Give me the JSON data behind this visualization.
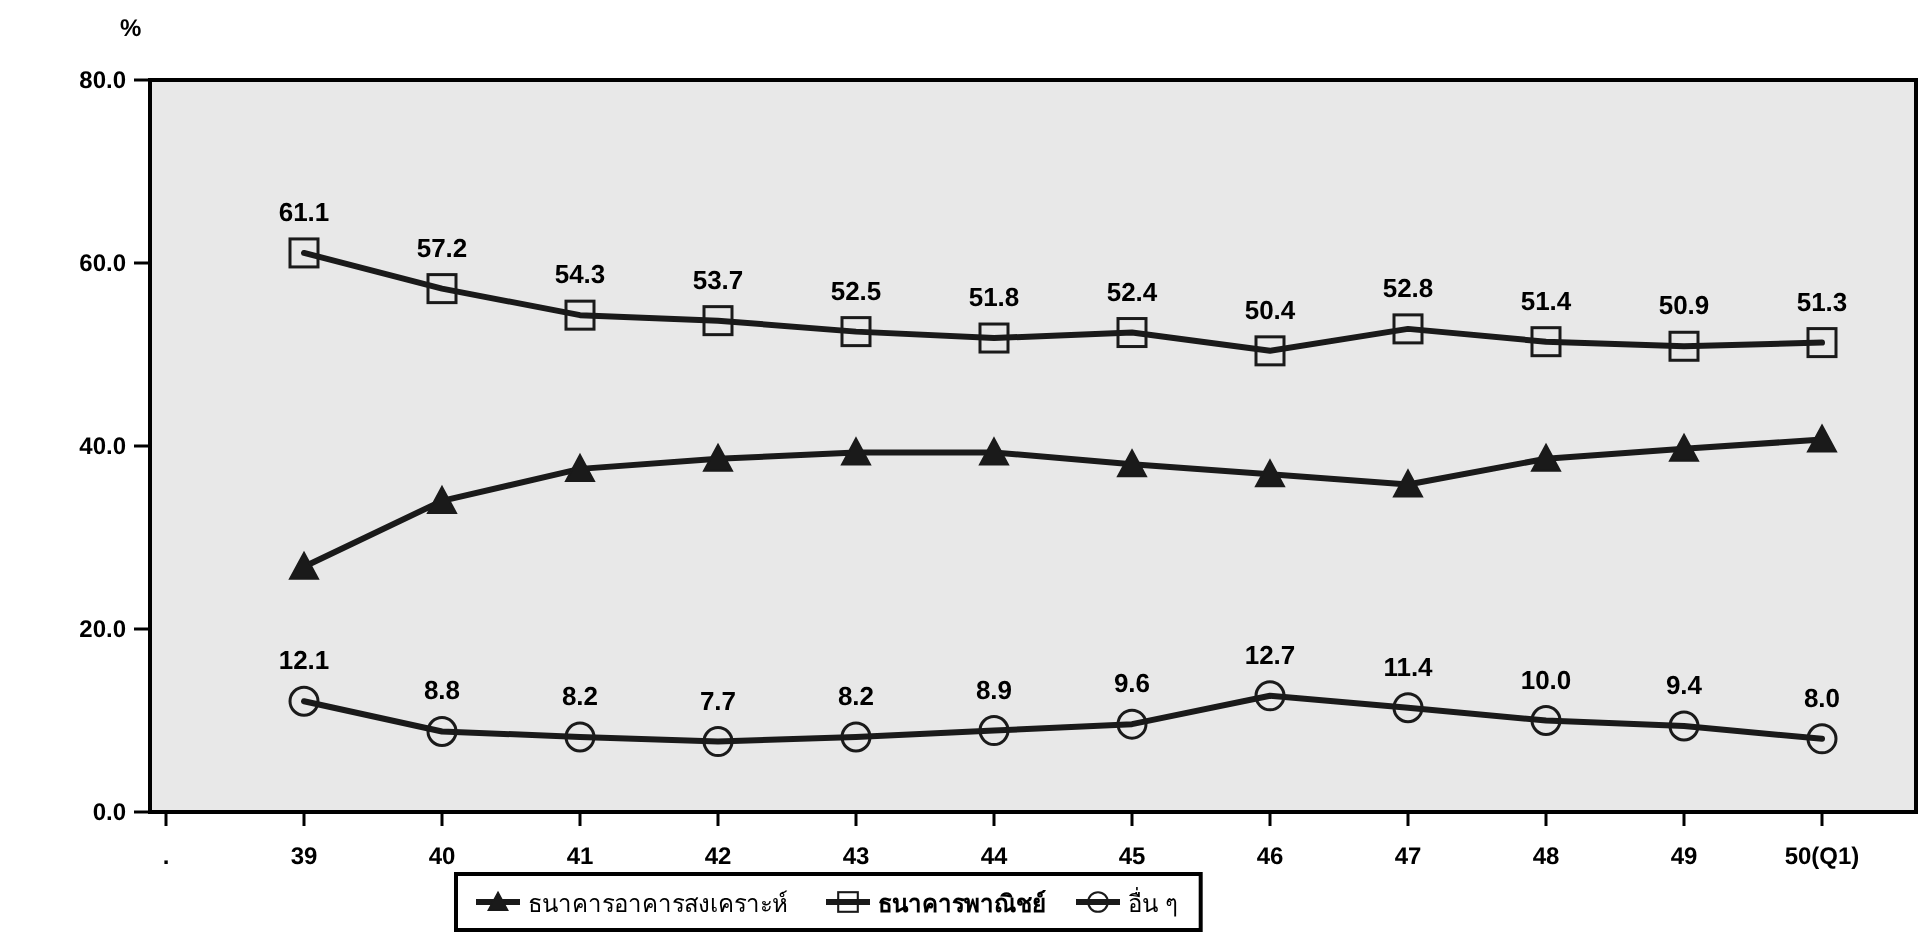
{
  "chart_data": {
    "type": "line",
    "ylabel": "%",
    "categories": [
      ".",
      "39",
      "40",
      "41",
      "42",
      "43",
      "44",
      "45",
      "46",
      "47",
      "48",
      "49",
      "50(Q1)"
    ],
    "ylim": [
      0,
      80
    ],
    "yticks": [
      {
        "value": 0,
        "label": "0.0"
      },
      {
        "value": 20,
        "label": "20.0"
      },
      {
        "value": 40,
        "label": "40.0"
      },
      {
        "value": 60,
        "label": "60.0"
      },
      {
        "value": 80,
        "label": "80.0"
      }
    ],
    "grid": false,
    "legend": "bottom",
    "line_style": "solid",
    "series": [
      {
        "name": "ธนาคารอาคารสงเคราะห์",
        "color": "#1a1a1a",
        "marker": "triangle",
        "values": [
          null,
          26.8,
          34.0,
          37.5,
          38.6,
          39.3,
          39.3,
          38.0,
          36.9,
          35.8,
          38.6,
          39.7,
          40.7
        ]
      },
      {
        "name": "ธนาคารพาณิชย์",
        "color": "#1a1a1a",
        "marker": "square",
        "values": [
          null,
          61.1,
          57.2,
          54.3,
          53.7,
          52.5,
          51.8,
          52.4,
          50.4,
          52.8,
          51.4,
          50.9,
          51.3
        ],
        "value_labels": [
          null,
          "61.1",
          "57.2",
          "54.3",
          "53.7",
          "52.5",
          "51.8",
          "52.4",
          "50.4",
          "52.8",
          "51.4",
          "50.9",
          "51.3"
        ]
      },
      {
        "name": "อื่น ๆ",
        "color": "#1a1a1a",
        "marker": "circle",
        "values": [
          null,
          12.1,
          8.8,
          8.2,
          7.7,
          8.2,
          8.9,
          9.6,
          12.7,
          11.4,
          10.0,
          9.4,
          8.0
        ],
        "value_labels": [
          null,
          "12.1",
          "8.8",
          "8.2",
          "7.7",
          "8.2",
          "8.9",
          "9.6",
          "12.7",
          "11.4",
          "10.0",
          "9.4",
          "8.0"
        ]
      }
    ]
  }
}
